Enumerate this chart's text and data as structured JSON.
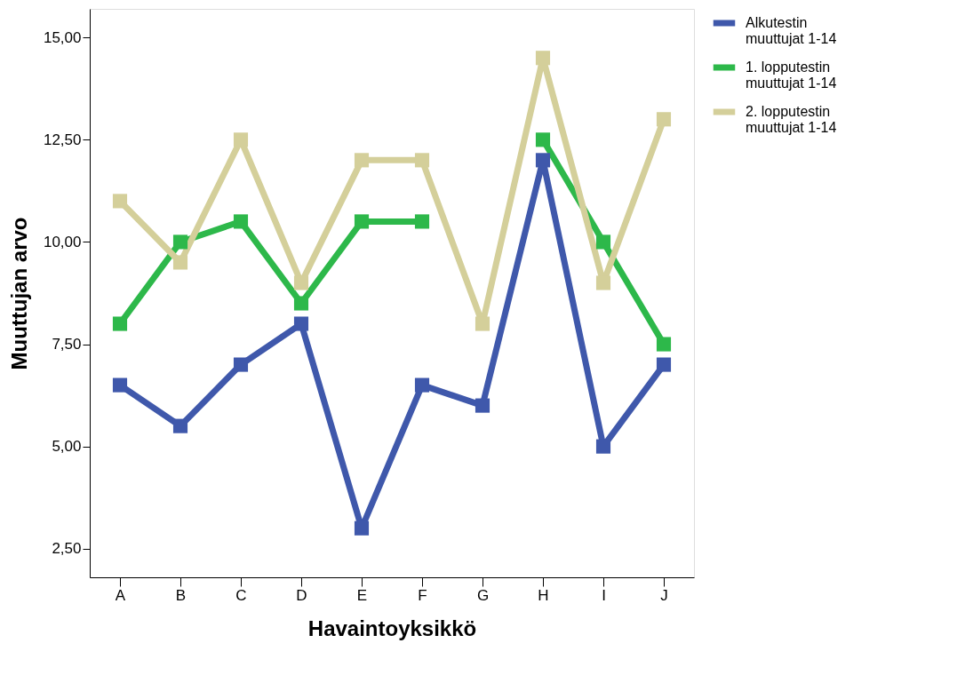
{
  "chart_data": {
    "type": "line",
    "xlabel": "Havaintoyksikkö",
    "ylabel": "Muuttujan arvo",
    "categories": [
      "A",
      "B",
      "C",
      "D",
      "E",
      "F",
      "G",
      "H",
      "I",
      "J"
    ],
    "series": [
      {
        "name": "Alkutestin muuttujat 1-14",
        "color": "#3f58ab",
        "values": [
          6.5,
          5.5,
          7,
          8,
          3,
          6.5,
          6,
          12,
          5,
          7
        ]
      },
      {
        "name": "1. lopputestin muuttujat 1-14",
        "color": "#2db84a",
        "values": [
          8,
          10,
          10.5,
          8.5,
          10.5,
          10.5,
          null,
          12.5,
          10,
          7.5
        ]
      },
      {
        "name": "2. lopputestin muuttujat 1-14",
        "color": "#d4cf9a",
        "values": [
          11,
          9.5,
          12.5,
          9,
          12,
          12,
          8,
          14.5,
          9,
          13
        ]
      }
    ],
    "ylim": [
      1.8,
      15.7
    ],
    "yticks": [
      {
        "value": 2.5,
        "label": "2,50"
      },
      {
        "value": 5,
        "label": "5,00"
      },
      {
        "value": 7.5,
        "label": "7,50"
      },
      {
        "value": 10,
        "label": "10,00"
      },
      {
        "value": 12.5,
        "label": "12,50"
      },
      {
        "value": 15,
        "label": "15,00"
      }
    ],
    "grid": false,
    "legend": "top right",
    "marker": "square",
    "line_style": "solid"
  }
}
